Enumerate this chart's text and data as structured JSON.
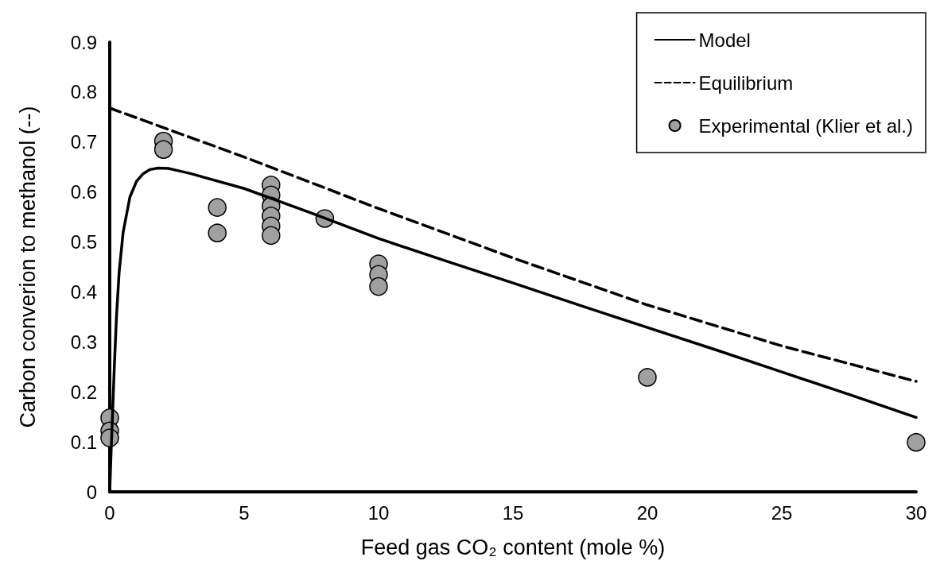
{
  "chart_data": {
    "type": "line",
    "xlabel": "Feed gas CO₂ content (mole %)",
    "ylabel": "Carbon converion to methanol (--)",
    "xlim": [
      0,
      30
    ],
    "xticks": [
      0,
      5,
      10,
      15,
      20,
      25,
      30
    ],
    "ylim": [
      0,
      0.9
    ],
    "yticks": [
      0,
      0.1,
      0.2,
      0.3,
      0.4,
      0.5,
      0.6,
      0.7,
      0.8,
      0.9
    ],
    "grid": false,
    "legend": "top right",
    "series": [
      {
        "name": "Model",
        "color": "#000000",
        "line_style": "solid",
        "marker": "none",
        "x": [
          0,
          0.05,
          0.1,
          0.17,
          0.25,
          0.35,
          0.5,
          0.75,
          1,
          1.25,
          1.5,
          1.8,
          2.2,
          3,
          5,
          7.5,
          10,
          12.5,
          15,
          17.5,
          20,
          22.5,
          25,
          27.5,
          30
        ],
        "values": [
          0,
          0.08,
          0.15,
          0.25,
          0.35,
          0.44,
          0.52,
          0.59,
          0.622,
          0.637,
          0.645,
          0.648,
          0.647,
          0.637,
          0.607,
          0.558,
          0.507,
          0.462,
          0.418,
          0.373,
          0.329,
          0.285,
          0.24,
          0.195,
          0.149
        ]
      },
      {
        "name": "Equilibrium",
        "color": "#000000",
        "line_style": "dashed",
        "marker": "none",
        "x": [
          0,
          5,
          10,
          15,
          20,
          25,
          30
        ],
        "values": [
          0.768,
          0.67,
          0.567,
          0.468,
          0.374,
          0.292,
          0.221
        ]
      },
      {
        "name": "Experimental (Klier et al.)",
        "type": "scatter",
        "color": "#a0a0a0",
        "marker": "circle",
        "x": [
          0,
          0,
          0,
          2,
          2,
          4,
          4,
          6,
          6,
          6,
          6,
          6,
          6,
          8,
          10,
          10,
          10,
          20,
          30
        ],
        "values": [
          0.148,
          0.122,
          0.108,
          0.702,
          0.685,
          0.569,
          0.518,
          0.614,
          0.594,
          0.572,
          0.552,
          0.532,
          0.513,
          0.547,
          0.456,
          0.435,
          0.411,
          0.229,
          0.099
        ]
      }
    ]
  }
}
